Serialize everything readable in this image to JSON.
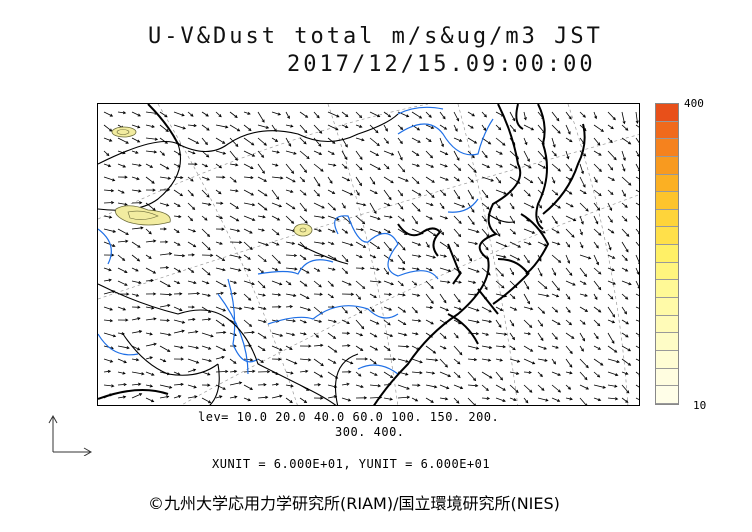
{
  "header": {
    "title": "U-V&Dust total m/s&ug/m3 JST",
    "datetime": "2017/12/15.09:00:00"
  },
  "colorbar": {
    "max_label": "400",
    "min_label": "10",
    "colors": [
      "#e8501a",
      "#f06a1c",
      "#f5821e",
      "#f89a1f",
      "#fbb023",
      "#fdc42c",
      "#fed43a",
      "#ffe04a",
      "#fff066",
      "#fff57e",
      "#fff996",
      "#fffaa8",
      "#fffbb8",
      "#fefcc6",
      "#fffdd4",
      "#fffde0",
      "#fffee8"
    ]
  },
  "legend": {
    "levels_line1": "lev= 10.0 20.0 40.0 60.0 100. 150. 200.",
    "levels_line2": "300. 400."
  },
  "units": {
    "text": "XUNIT = 6.000E+01, YUNIT = 6.000E+01"
  },
  "credit": {
    "text": "©九州大学応用力学研究所(RIAM)/国立環境研究所(NIES)"
  },
  "map": {
    "region": "East Asia",
    "vector_field": "wind u-v",
    "dust_field": "total dust concentration",
    "coast_color": "#000000",
    "river_color": "#1e6fe6",
    "dust_fill_color": "#f2eca0",
    "dust_outline_color": "#6b6b3a"
  }
}
